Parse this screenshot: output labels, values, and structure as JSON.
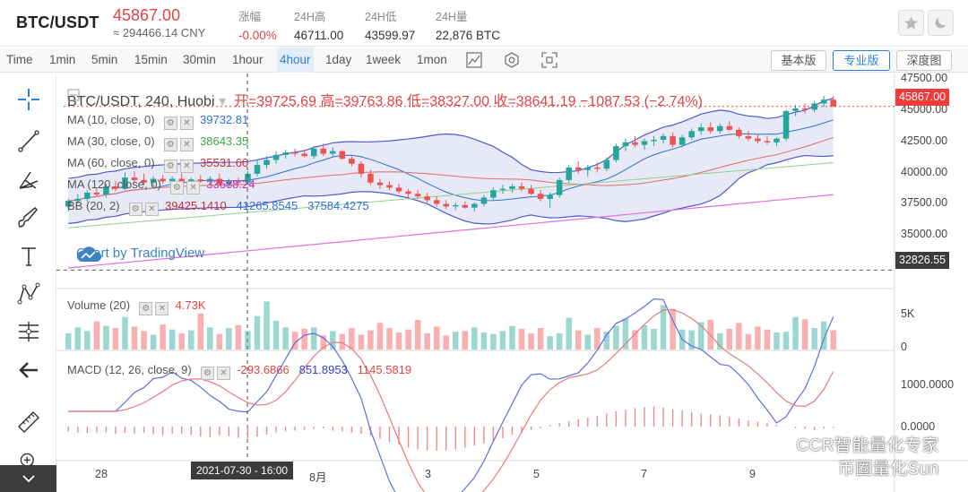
{
  "ticker": {
    "pair": "BTC/USDT",
    "price": "45867.00",
    "cny": "≈ 294466.14 CNY",
    "stats": [
      {
        "label": "涨幅",
        "value": "-0.00%"
      },
      {
        "label": "24H高",
        "value": "46711.00"
      },
      {
        "label": "24H低",
        "value": "43599.97"
      },
      {
        "label": "24H量",
        "value": "22,876 BTC"
      }
    ]
  },
  "toolbar": {
    "timeframes": [
      "Time",
      "1min",
      "5min",
      "15min",
      "30min",
      "1hour",
      "4hour",
      "1day",
      "1week",
      "1mon"
    ],
    "active_timeframe": "4hour",
    "views": [
      "基本版",
      "专业版",
      "深度图"
    ],
    "active_view": "专业版"
  },
  "legend": {
    "symbol": "BTC/USDT, 240, Huobi",
    "ohlc": "开=39725.69 高=39763.86 低=38327.00 收=38641.19 −1087.53 (−2.74%)",
    "ma": [
      {
        "label": "MA (10, close, 0)",
        "value": "39732.81",
        "color": "#2f6fd8"
      },
      {
        "label": "MA (30, close, 0)",
        "value": "38643.35",
        "color": "#3aa844"
      },
      {
        "label": "MA (60, close, 0)",
        "value": "35531.60",
        "color": "#d02e2e"
      },
      {
        "label": "MA (120, close, 0)",
        "value": "33688.24",
        "color": "#c02ec0"
      }
    ],
    "bb_label": "BB (20, 2)",
    "bb_values": [
      "39425.1410",
      "41265.8545",
      "37584.4275"
    ],
    "volume_label": "Volume (20)",
    "volume_value": "4.73K",
    "macd_label": "MACD (12, 26, close, 9)",
    "macd_values": [
      "-293.6866",
      "851.8953",
      "1145.5819"
    ]
  },
  "watermark": "Chart by TradingView",
  "overlay_text": "CCR智能量化专家\n币圈量化Sun",
  "crosshair_time": "2021-07-30 - 16:00",
  "colors": {
    "up": "#26a69a",
    "down": "#ef5350",
    "accent": "#2f7fd6",
    "price_red": "#e04545"
  },
  "chart_data": {
    "type": "candlestick",
    "x_labels": [
      "28",
      "8月",
      "3",
      "5",
      "7",
      "9"
    ],
    "y_ticks": [
      "47500.00",
      "45000.00",
      "42500.00",
      "40000.00",
      "37500.00",
      "35000.00"
    ],
    "current_price": "45867.00",
    "crosshair_price": "32826.55",
    "ylim": [
      31500,
      48200
    ],
    "volume_ticks": [
      "5K",
      "0"
    ],
    "macd_ticks": [
      "1000.0000",
      "0.0000"
    ],
    "candles": [
      [
        37880,
        38500,
        37500,
        38340
      ],
      [
        38340,
        38900,
        38100,
        38500
      ],
      [
        38500,
        39200,
        38300,
        39000
      ],
      [
        39000,
        39400,
        38700,
        38850
      ],
      [
        38850,
        39700,
        38600,
        39500
      ],
      [
        39500,
        39900,
        39100,
        39300
      ],
      [
        39300,
        40600,
        39200,
        40200
      ],
      [
        40200,
        40700,
        39800,
        40000
      ],
      [
        40000,
        40500,
        39600,
        39800
      ],
      [
        39800,
        40300,
        39400,
        40100
      ],
      [
        40100,
        40400,
        39700,
        39900
      ],
      [
        39900,
        40300,
        39600,
        40100
      ],
      [
        40100,
        40500,
        39800,
        39850
      ],
      [
        39850,
        40200,
        39600,
        40050
      ],
      [
        40050,
        40400,
        39800,
        39900
      ],
      [
        39900,
        40300,
        39700,
        40100
      ],
      [
        40100,
        40500,
        39600,
        39700
      ],
      [
        39700,
        40100,
        39400,
        39900
      ],
      [
        39900,
        40200,
        39600,
        39800
      ],
      [
        39800,
        40700,
        39600,
        40500
      ],
      [
        40500,
        41600,
        40300,
        41200
      ],
      [
        41200,
        41900,
        40900,
        41600
      ],
      [
        41600,
        42300,
        41300,
        42000
      ],
      [
        42000,
        42400,
        41700,
        42200
      ],
      [
        42200,
        42500,
        41900,
        42100
      ],
      [
        42100,
        42400,
        41800,
        41900
      ],
      [
        41900,
        42700,
        41700,
        42500
      ],
      [
        42500,
        42900,
        41900,
        42100
      ],
      [
        42100,
        42600,
        41800,
        42300
      ],
      [
        42300,
        42400,
        41600,
        41700
      ],
      [
        41700,
        41900,
        41100,
        41300
      ],
      [
        41300,
        41500,
        40200,
        40500
      ],
      [
        40500,
        40800,
        39600,
        39800
      ],
      [
        39800,
        40100,
        39300,
        39600
      ],
      [
        39600,
        39900,
        39200,
        39400
      ],
      [
        39400,
        39700,
        38900,
        39100
      ],
      [
        39100,
        39300,
        38600,
        38900
      ],
      [
        38900,
        39200,
        38500,
        38700
      ],
      [
        38700,
        39000,
        38200,
        38400
      ],
      [
        38400,
        38700,
        37900,
        38100
      ],
      [
        38100,
        38400,
        37700,
        37900
      ],
      [
        37900,
        38200,
        37600,
        38000
      ],
      [
        38000,
        38300,
        37700,
        37800
      ],
      [
        37800,
        38200,
        37500,
        38100
      ],
      [
        38100,
        38800,
        37900,
        38600
      ],
      [
        38600,
        39400,
        38400,
        39200
      ],
      [
        39200,
        39600,
        38900,
        39300
      ],
      [
        39300,
        39700,
        39000,
        39500
      ],
      [
        39500,
        39800,
        39100,
        39300
      ],
      [
        39300,
        39600,
        38800,
        38900
      ],
      [
        38900,
        39200,
        38300,
        38500
      ],
      [
        38500,
        39000,
        37800,
        38800
      ],
      [
        38800,
        40200,
        38600,
        40000
      ],
      [
        40000,
        41200,
        39800,
        41000
      ],
      [
        41000,
        41500,
        40500,
        40800
      ],
      [
        40800,
        41200,
        40300,
        41000
      ],
      [
        41000,
        41400,
        40600,
        40900
      ],
      [
        40900,
        41800,
        40700,
        41600
      ],
      [
        41600,
        42900,
        41400,
        42700
      ],
      [
        42700,
        43300,
        42300,
        43000
      ],
      [
        43000,
        43500,
        42600,
        42800
      ],
      [
        42800,
        43300,
        42400,
        43100
      ],
      [
        43100,
        43500,
        42700,
        43200
      ],
      [
        43200,
        43700,
        42900,
        43500
      ],
      [
        43500,
        43800,
        42600,
        42800
      ],
      [
        42800,
        43600,
        42600,
        43400
      ],
      [
        43400,
        44100,
        43200,
        43900
      ],
      [
        43900,
        44500,
        43600,
        44200
      ],
      [
        44200,
        44600,
        43700,
        43900
      ],
      [
        43900,
        44500,
        43700,
        44300
      ],
      [
        44300,
        44700,
        43900,
        44000
      ],
      [
        44000,
        44200,
        43300,
        43500
      ],
      [
        43500,
        43900,
        43100,
        43300
      ],
      [
        43300,
        43600,
        42900,
        43100
      ],
      [
        43100,
        43500,
        42800,
        43000
      ],
      [
        43000,
        43400,
        42700,
        43300
      ],
      [
        43300,
        45600,
        43100,
        45500
      ],
      [
        45500,
        46000,
        45100,
        45700
      ],
      [
        45700,
        46100,
        45300,
        45600
      ],
      [
        45600,
        46300,
        45400,
        46100
      ],
      [
        46100,
        46700,
        45800,
        46400
      ],
      [
        46400,
        46700,
        45800,
        45867
      ]
    ],
    "volumes": [
      2.2,
      3.0,
      2.5,
      3.8,
      3.2,
      2.9,
      4.4,
      3.1,
      2.5,
      2.0,
      3.4,
      2.7,
      2.2,
      2.6,
      4.9,
      3.0,
      2.1,
      2.9,
      3.3,
      2.5,
      4.5,
      6.5,
      3.9,
      3.0,
      2.4,
      2.8,
      3.0,
      1.9,
      2.5,
      2.1,
      2.9,
      2.0,
      2.6,
      3.6,
      2.9,
      2.3,
      2.7,
      4.0,
      2.2,
      3.1,
      1.9,
      2.4,
      2.5,
      3.0,
      2.3,
      2.1,
      2.5,
      3.2,
      2.8,
      2.2,
      2.9,
      1.8,
      2.2,
      4.3,
      2.6,
      2.0,
      2.9,
      2.4,
      3.2,
      4.2,
      2.6,
      3.3,
      2.8,
      6.0,
      5.5,
      2.7,
      2.6,
      3.7,
      4.0,
      2.2,
      2.8,
      3.6,
      2.1,
      3.1,
      2.7,
      2.3,
      2.4,
      4.4,
      4.1,
      2.9,
      3.8,
      2.6
    ],
    "macd_hist": [
      -120,
      -150,
      -160,
      -150,
      -140,
      -180,
      -160,
      -170,
      -150,
      -190,
      -210,
      -180,
      -170,
      -200,
      -240,
      -260,
      -220,
      -240,
      -280,
      -300,
      -250,
      -200,
      -150,
      -120,
      -100,
      -80,
      -60,
      -40,
      -100,
      -120,
      -150,
      -180,
      -220,
      -300,
      -380,
      -450,
      -520,
      -560,
      -580,
      -600,
      -590,
      -560,
      -520,
      -470,
      -420,
      -360,
      -290,
      -200,
      -150,
      -80,
      -40,
      40,
      90,
      130,
      180,
      220,
      260,
      320,
      380,
      420,
      460,
      480,
      500,
      470,
      430,
      400,
      360,
      320,
      300,
      280,
      240,
      200,
      160,
      120,
      80,
      40,
      -10,
      -40,
      -60,
      -80,
      -50,
      -30
    ]
  }
}
